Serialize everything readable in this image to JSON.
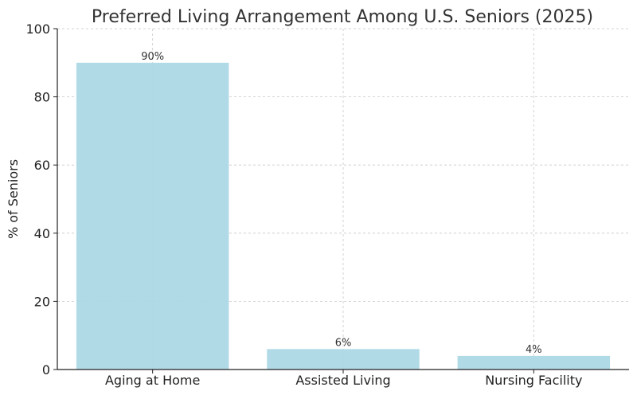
{
  "chart_data": {
    "type": "bar",
    "title": "Preferred Living Arrangement Among U.S. Seniors (2025)",
    "xlabel": "",
    "ylabel": "% of Seniors",
    "categories": [
      "Aging at Home",
      "Assisted Living",
      "Nursing Facility"
    ],
    "values": [
      90,
      6,
      4
    ],
    "data_labels": [
      "90%",
      "6%",
      "4%"
    ],
    "ylim": [
      0,
      100
    ],
    "yticks": [
      0,
      20,
      40,
      60,
      80,
      100
    ],
    "grid": true,
    "bar_color": "#add8e6"
  }
}
